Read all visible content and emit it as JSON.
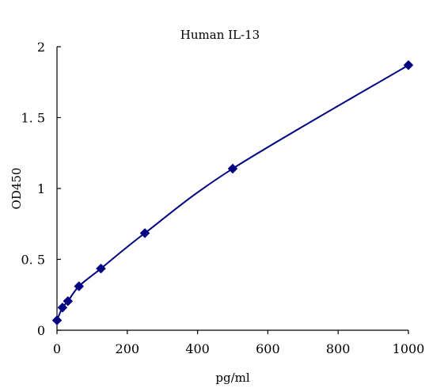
{
  "chart_data": {
    "type": "scatter",
    "title": "Human IL-13",
    "xlabel": "pg/ml",
    "ylabel": "OD450",
    "xlim": [
      0,
      1000
    ],
    "ylim": [
      0,
      2
    ],
    "x_ticks": [
      {
        "value": 0,
        "label": "0"
      },
      {
        "value": 200,
        "label": "200"
      },
      {
        "value": 400,
        "label": "400"
      },
      {
        "value": 600,
        "label": "600"
      },
      {
        "value": 800,
        "label": "800"
      },
      {
        "value": 1000,
        "label": "1000"
      }
    ],
    "y_ticks": [
      {
        "value": 0,
        "label": "0"
      },
      {
        "value": 0.5,
        "label": "0. 5"
      },
      {
        "value": 1,
        "label": "1"
      },
      {
        "value": 1.5,
        "label": "1. 5"
      },
      {
        "value": 2,
        "label": "2"
      }
    ],
    "grid": false,
    "legend": "none",
    "series": [
      {
        "marker": "diamond",
        "color": "#000080",
        "line": "smooth",
        "x": [
          0,
          15.6,
          31.2,
          62.5,
          125,
          250,
          500,
          1000
        ],
        "y": [
          0.07,
          0.16,
          0.205,
          0.31,
          0.435,
          0.685,
          1.14,
          1.87
        ]
      }
    ]
  }
}
